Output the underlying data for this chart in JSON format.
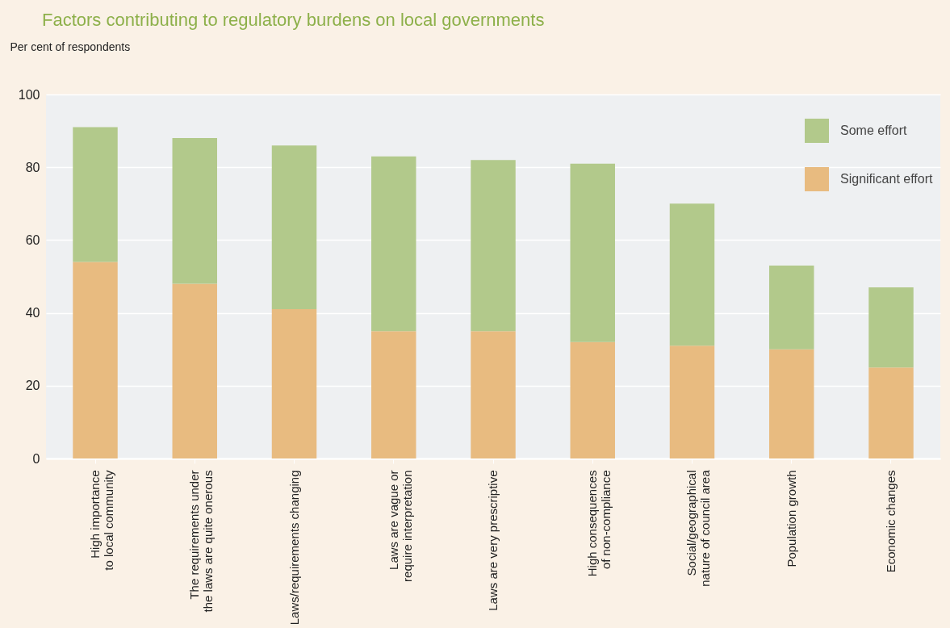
{
  "chart_data": {
    "type": "bar",
    "title": "Factors contributing to regulatory burdens on local governments",
    "ylabel": "Per cent of respondents",
    "categories": [
      "High importance to local community",
      "The requirements under the laws are quite onerous",
      "Laws/requirements changing",
      "Laws are vague or require interpretation",
      "Laws are very prescriptive",
      "High consequences of non-compliance",
      "Social/geographical nature of council area",
      "Population growth",
      "Economic changes"
    ],
    "series": [
      {
        "name": "Significant effort",
        "color": "#e8bb80",
        "values": [
          54,
          48,
          41,
          35,
          35,
          32,
          31,
          30,
          25
        ]
      },
      {
        "name": "Some effort",
        "color": "#b2c98b",
        "values": [
          37,
          40,
          45,
          48,
          47,
          49,
          39,
          23,
          22
        ]
      }
    ],
    "stacked": true,
    "ylim": [
      0,
      100
    ],
    "yticks": [
      0,
      20,
      40,
      60,
      80,
      100
    ],
    "grid": "y",
    "legend": "top right"
  }
}
